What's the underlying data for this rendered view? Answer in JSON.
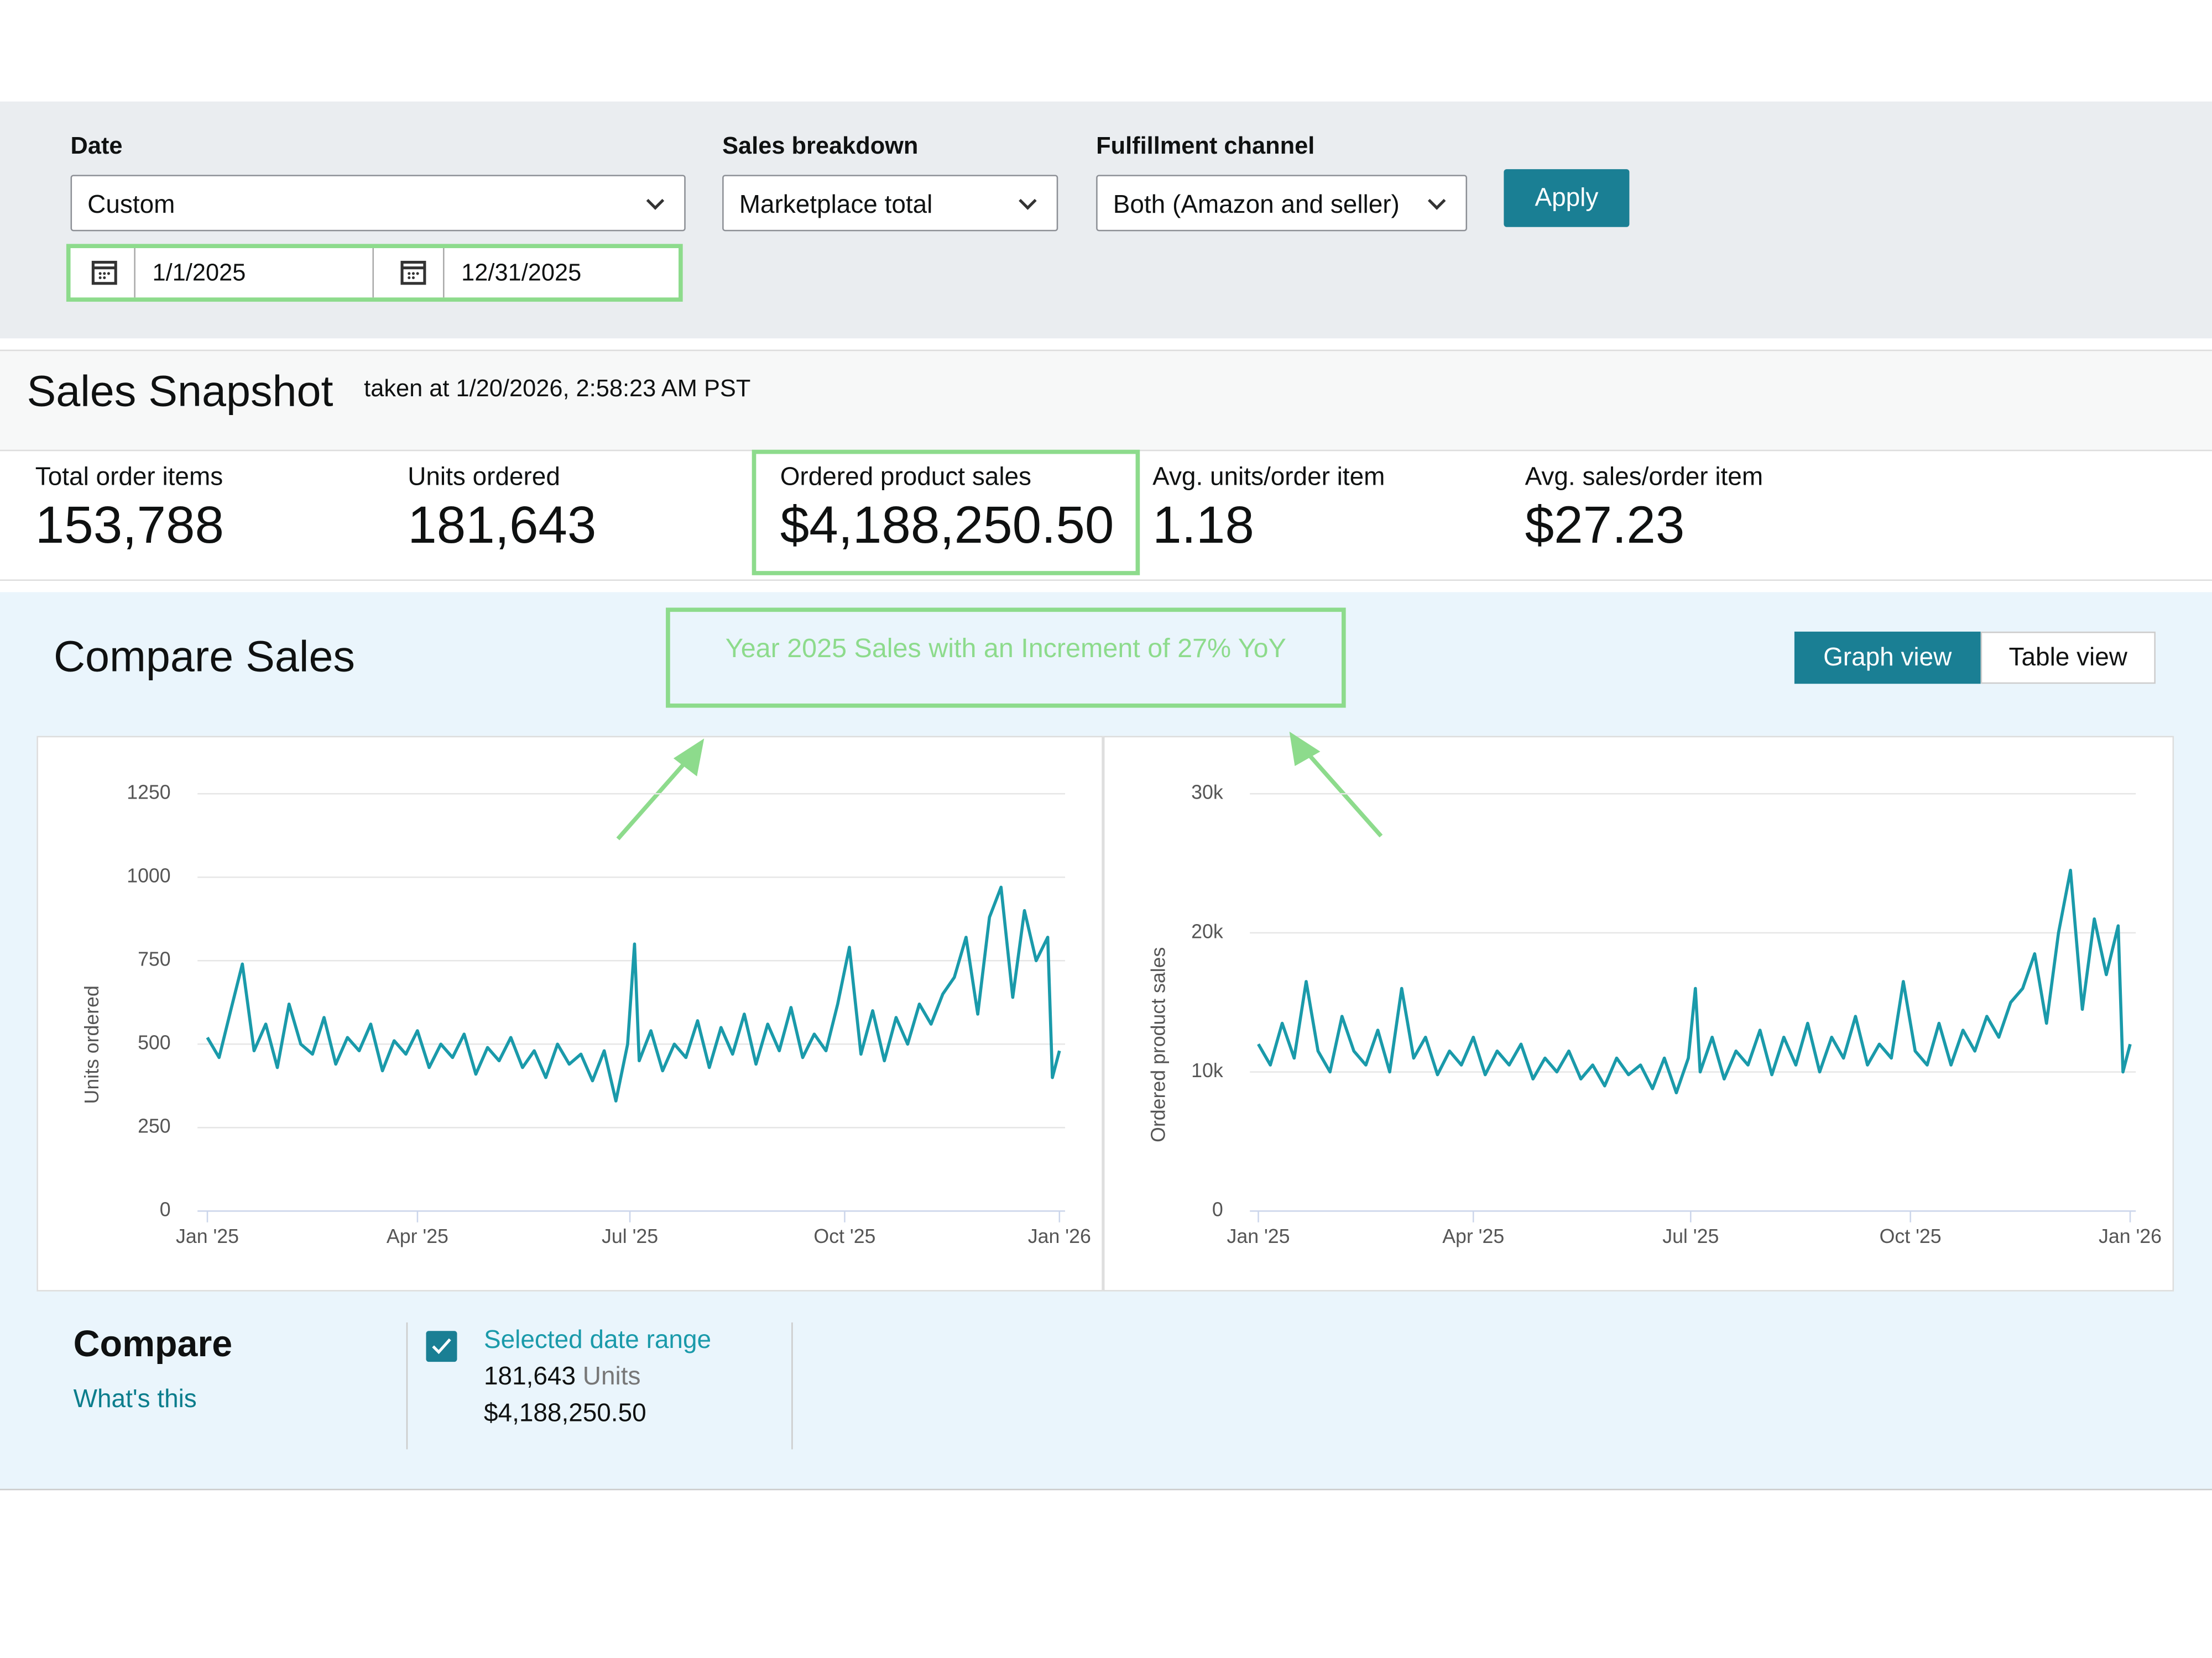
{
  "filters": {
    "date": {
      "label": "Date",
      "value": "Custom",
      "start": "1/1/2025",
      "end": "12/31/2025"
    },
    "sales_breakdown": {
      "label": "Sales breakdown",
      "value": "Marketplace total"
    },
    "fulfillment": {
      "label": "Fulfillment channel",
      "value": "Both (Amazon and seller)"
    },
    "apply": "Apply"
  },
  "snapshot": {
    "title": "Sales Snapshot",
    "taken": "taken at 1/20/2026, 2:58:23 AM PST",
    "metrics": [
      {
        "label": "Total order items",
        "value": "153,788"
      },
      {
        "label": "Units ordered",
        "value": "181,643"
      },
      {
        "label": "Ordered product sales",
        "value": "$4,188,250.50"
      },
      {
        "label": "Avg. units/order item",
        "value": "1.18"
      },
      {
        "label": "Avg. sales/order item",
        "value": "$27.23"
      }
    ]
  },
  "compare_sales": {
    "title": "Compare Sales",
    "annotation": "Year 2025 Sales with an Increment of 27% YoY",
    "graph_view": "Graph view",
    "table_view": "Table view"
  },
  "compare": {
    "title": "Compare",
    "whats_this": "What's this",
    "range_label": "Selected date range",
    "units": "181,643",
    "units_word": "Units",
    "sales": "$4,188,250.50"
  },
  "chart_data": [
    {
      "type": "line",
      "y_label": "Units ordered",
      "color": "#1a9aaa",
      "grid": true,
      "xlim": [
        0,
        365
      ],
      "ylim": [
        0,
        1250
      ],
      "xticks": [
        {
          "value": 0,
          "label": "Jan '25"
        },
        {
          "value": 90,
          "label": "Apr '25"
        },
        {
          "value": 181,
          "label": "Jul '25"
        },
        {
          "value": 273,
          "label": "Oct '25"
        },
        {
          "value": 365,
          "label": "Jan '26"
        }
      ],
      "yticks": [
        0,
        250,
        500,
        750,
        1000,
        1250
      ],
      "x": [
        0,
        5,
        10,
        15,
        20,
        25,
        30,
        35,
        40,
        45,
        50,
        55,
        60,
        65,
        70,
        75,
        80,
        85,
        90,
        95,
        100,
        105,
        110,
        115,
        120,
        125,
        130,
        135,
        140,
        145,
        150,
        155,
        160,
        165,
        170,
        175,
        180,
        183,
        185,
        190,
        195,
        200,
        205,
        210,
        215,
        220,
        225,
        230,
        235,
        240,
        245,
        250,
        255,
        260,
        265,
        270,
        275,
        280,
        285,
        290,
        295,
        300,
        305,
        310,
        315,
        320,
        325,
        330,
        335,
        340,
        345,
        350,
        355,
        360,
        362,
        365
      ],
      "values": [
        520,
        460,
        600,
        740,
        480,
        560,
        430,
        620,
        500,
        470,
        580,
        440,
        520,
        480,
        560,
        420,
        510,
        470,
        540,
        430,
        500,
        460,
        530,
        410,
        490,
        450,
        520,
        430,
        480,
        400,
        500,
        440,
        470,
        390,
        480,
        330,
        500,
        800,
        450,
        540,
        420,
        500,
        460,
        570,
        430,
        550,
        470,
        590,
        440,
        560,
        480,
        610,
        460,
        530,
        480,
        620,
        790,
        470,
        600,
        450,
        580,
        500,
        620,
        560,
        650,
        700,
        820,
        590,
        880,
        970,
        640,
        900,
        750,
        820,
        400,
        480
      ]
    },
    {
      "type": "line",
      "y_label": "Ordered product sales",
      "color": "#1a9aaa",
      "grid": true,
      "xlim": [
        0,
        365
      ],
      "ylim": [
        0,
        30000
      ],
      "xticks": [
        {
          "value": 0,
          "label": "Jan '25"
        },
        {
          "value": 90,
          "label": "Apr '25"
        },
        {
          "value": 181,
          "label": "Jul '25"
        },
        {
          "value": 273,
          "label": "Oct '25"
        },
        {
          "value": 365,
          "label": "Jan '26"
        }
      ],
      "yticks": [
        0,
        {
          "value": 10000,
          "label": "10k"
        },
        {
          "value": 20000,
          "label": "20k"
        },
        {
          "value": 30000,
          "label": "30k"
        }
      ],
      "x": [
        0,
        5,
        10,
        15,
        20,
        25,
        30,
        35,
        40,
        45,
        50,
        55,
        60,
        65,
        70,
        75,
        80,
        85,
        90,
        95,
        100,
        105,
        110,
        115,
        120,
        125,
        130,
        135,
        140,
        145,
        150,
        155,
        160,
        165,
        170,
        175,
        180,
        183,
        185,
        190,
        195,
        200,
        205,
        210,
        215,
        220,
        225,
        230,
        235,
        240,
        245,
        250,
        255,
        260,
        265,
        270,
        275,
        280,
        285,
        290,
        295,
        300,
        305,
        310,
        315,
        320,
        325,
        330,
        335,
        340,
        345,
        350,
        355,
        360,
        362,
        365
      ],
      "values": [
        12000,
        10500,
        13500,
        11000,
        16500,
        11500,
        10000,
        14000,
        11500,
        10500,
        13000,
        10000,
        16000,
        11000,
        12500,
        9800,
        11500,
        10500,
        12500,
        9800,
        11500,
        10500,
        12000,
        9500,
        11000,
        10000,
        11500,
        9500,
        10500,
        9000,
        11000,
        9800,
        10500,
        8800,
        11000,
        8500,
        11000,
        16000,
        10000,
        12500,
        9500,
        11500,
        10500,
        13000,
        9800,
        12500,
        10500,
        13500,
        10000,
        12500,
        11000,
        14000,
        10500,
        12000,
        11000,
        16500,
        11500,
        10500,
        13500,
        10500,
        13000,
        11500,
        14000,
        12500,
        15000,
        16000,
        18500,
        13500,
        20000,
        24500,
        14500,
        21000,
        17000,
        20500,
        10000,
        12000
      ]
    }
  ]
}
